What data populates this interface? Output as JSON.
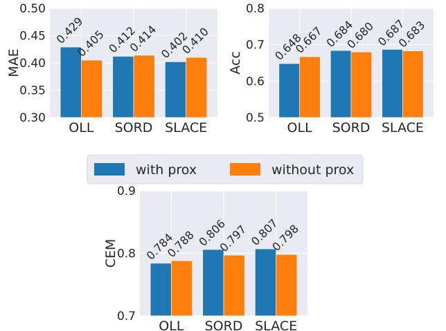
{
  "colors": {
    "with_prox": "#1f77b4",
    "without_prox": "#ff7f0e",
    "panel_bg": "#eaeaf2",
    "grid": "#ffffff"
  },
  "legend": {
    "placement": "center",
    "entries": [
      "with prox",
      "without prox"
    ]
  },
  "chart_data": [
    {
      "type": "bar",
      "ylabel": "MAE",
      "ylim": [
        0.3,
        0.5
      ],
      "yticks": [
        "0.30",
        "0.35",
        "0.40",
        "0.45",
        "0.50"
      ],
      "categories": [
        "OLL",
        "SORD",
        "SLACE"
      ],
      "grid": true,
      "series": [
        {
          "name": "with prox",
          "values": [
            0.429,
            0.412,
            0.402
          ],
          "labels": [
            "0.429",
            "0.412",
            "0.402"
          ]
        },
        {
          "name": "without prox",
          "values": [
            0.405,
            0.414,
            0.41
          ],
          "labels": [
            "0.405",
            "0.414",
            "0.410"
          ]
        }
      ]
    },
    {
      "type": "bar",
      "ylabel": "Acc",
      "ylim": [
        0.5,
        0.8
      ],
      "yticks": [
        "0.5",
        "0.6",
        "0.7",
        "0.8"
      ],
      "categories": [
        "OLL",
        "SORD",
        "SLACE"
      ],
      "grid": true,
      "series": [
        {
          "name": "with prox",
          "values": [
            0.648,
            0.684,
            0.687
          ],
          "labels": [
            "0.648",
            "0.684",
            "0.687"
          ]
        },
        {
          "name": "without prox",
          "values": [
            0.667,
            0.68,
            0.683
          ],
          "labels": [
            "0.667",
            "0.680",
            "0.683"
          ]
        }
      ]
    },
    {
      "type": "bar",
      "ylabel": "CEM",
      "ylim": [
        0.7,
        0.9
      ],
      "yticks": [
        "0.7",
        "0.8",
        "0.9"
      ],
      "categories": [
        "OLL",
        "SORD",
        "SLACE"
      ],
      "grid": true,
      "series": [
        {
          "name": "with prox",
          "values": [
            0.784,
            0.806,
            0.807
          ],
          "labels": [
            "0.784",
            "0.806",
            "0.807"
          ]
        },
        {
          "name": "without prox",
          "values": [
            0.788,
            0.797,
            0.798
          ],
          "labels": [
            "0.788",
            "0.797",
            "0.798"
          ]
        }
      ]
    }
  ]
}
